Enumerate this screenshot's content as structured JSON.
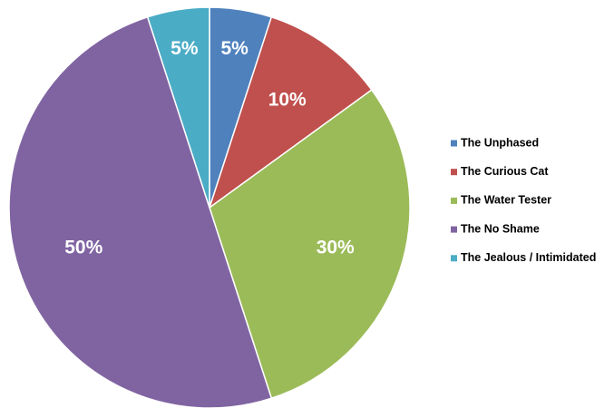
{
  "chart_data": {
    "type": "pie",
    "categories": [
      "The Unphased",
      "The Curious Cat",
      "The Water Tester",
      "The No Shame",
      "The Jealous / Intimidated"
    ],
    "values": [
      5,
      10,
      30,
      50,
      5
    ],
    "value_labels": [
      "5%",
      "10%",
      "30%",
      "50%",
      "5%"
    ],
    "colors": [
      "#4f81bd",
      "#c0504d",
      "#9bbb59",
      "#8064a2",
      "#4bacc6"
    ],
    "legend": "right"
  }
}
